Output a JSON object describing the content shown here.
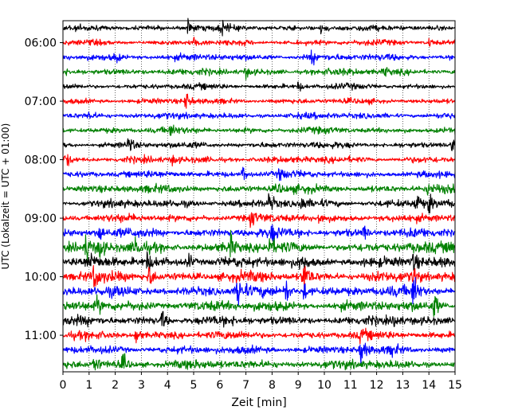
{
  "chart_data": {
    "type": "line",
    "xlabel": "Zeit  [min]",
    "ylabel": "UTC (Lokalzeit = UTC + 01:00)",
    "xlim": [
      0,
      15
    ],
    "x_ticks": [
      0,
      1,
      2,
      3,
      4,
      5,
      6,
      7,
      8,
      9,
      10,
      11,
      12,
      13,
      14,
      15
    ],
    "y_time_start": "05:45",
    "y_time_end": "11:45",
    "y_ticks": [
      "06:00",
      "07:00",
      "08:00",
      "09:00",
      "10:00",
      "11:00"
    ],
    "row_interval_min": 15,
    "grid": "vertical dotted at each minute",
    "color_cycle": [
      "#000000",
      "#ff0000",
      "#0000ff",
      "#008000"
    ],
    "rows": [
      {
        "start": "05:45",
        "color": "#000000",
        "amp": 0.25,
        "events": [
          {
            "t": 4.8,
            "a": 1.0
          },
          {
            "t": 6.1,
            "a": 0.8
          },
          {
            "t": 9.9,
            "a": 0.9
          }
        ]
      },
      {
        "start": "06:00",
        "color": "#ff0000",
        "amp": 0.25,
        "events": [
          {
            "t": 5.0,
            "a": 0.6
          },
          {
            "t": 14.0,
            "a": 0.5
          }
        ]
      },
      {
        "start": "06:15",
        "color": "#0000ff",
        "amp": 0.3,
        "events": [
          {
            "t": 9.5,
            "a": 0.7
          },
          {
            "t": 2.0,
            "a": 0.5
          }
        ]
      },
      {
        "start": "06:30",
        "color": "#008000",
        "amp": 0.3,
        "events": [
          {
            "t": 7.0,
            "a": 0.5
          },
          {
            "t": 12.3,
            "a": 0.5
          }
        ]
      },
      {
        "start": "06:45",
        "color": "#000000",
        "amp": 0.25,
        "events": [
          {
            "t": 9.0,
            "a": 0.5
          }
        ]
      },
      {
        "start": "07:00",
        "color": "#ff0000",
        "amp": 0.25,
        "events": [
          {
            "t": 4.7,
            "a": 1.1
          }
        ]
      },
      {
        "start": "07:15",
        "color": "#0000ff",
        "amp": 0.28,
        "events": [
          {
            "t": 1.0,
            "a": 0.4
          }
        ]
      },
      {
        "start": "07:30",
        "color": "#008000",
        "amp": 0.28,
        "events": [
          {
            "t": 4.1,
            "a": 0.6
          }
        ]
      },
      {
        "start": "07:45",
        "color": "#000000",
        "amp": 0.28,
        "events": [
          {
            "t": 2.5,
            "a": 1.0
          },
          {
            "t": 14.9,
            "a": 1.0
          }
        ]
      },
      {
        "start": "08:00",
        "color": "#ff0000",
        "amp": 0.3,
        "events": [
          {
            "t": 0.1,
            "a": 0.8
          },
          {
            "t": 4.2,
            "a": 0.5
          }
        ]
      },
      {
        "start": "08:15",
        "color": "#0000ff",
        "amp": 0.3,
        "events": [
          {
            "t": 6.9,
            "a": 1.1
          },
          {
            "t": 8.3,
            "a": 0.6
          }
        ]
      },
      {
        "start": "08:30",
        "color": "#008000",
        "amp": 0.35,
        "events": [
          {
            "t": 8.2,
            "a": 0.6
          },
          {
            "t": 14.0,
            "a": 0.7
          }
        ]
      },
      {
        "start": "08:45",
        "color": "#000000",
        "amp": 0.35,
        "events": [
          {
            "t": 7.9,
            "a": 1.2
          },
          {
            "t": 9.1,
            "a": 0.8
          },
          {
            "t": 13.5,
            "a": 1.5
          },
          {
            "t": 14.0,
            "a": 1.0
          }
        ]
      },
      {
        "start": "09:00",
        "color": "#ff0000",
        "amp": 0.35,
        "events": [
          {
            "t": 7.2,
            "a": 1.0
          },
          {
            "t": 9.8,
            "a": 0.6
          }
        ]
      },
      {
        "start": "09:15",
        "color": "#0000ff",
        "amp": 0.4,
        "events": [
          {
            "t": 8.0,
            "a": 0.8
          },
          {
            "t": 11.5,
            "a": 0.8
          },
          {
            "t": 1.4,
            "a": 1.1
          }
        ]
      },
      {
        "start": "09:30",
        "color": "#008000",
        "amp": 0.45,
        "events": [
          {
            "t": 0.9,
            "a": 1.5
          },
          {
            "t": 1.4,
            "a": 1.3
          },
          {
            "t": 2.8,
            "a": 1.1
          },
          {
            "t": 6.4,
            "a": 1.3
          },
          {
            "t": 7.9,
            "a": 1.0
          },
          {
            "t": 14.8,
            "a": 1.0
          }
        ]
      },
      {
        "start": "09:45",
        "color": "#000000",
        "amp": 0.45,
        "events": [
          {
            "t": 1.0,
            "a": 1.0
          },
          {
            "t": 3.2,
            "a": 1.1
          },
          {
            "t": 4.8,
            "a": 1.0
          },
          {
            "t": 9.1,
            "a": 1.1
          },
          {
            "t": 13.4,
            "a": 1.0
          }
        ]
      },
      {
        "start": "10:00",
        "color": "#ff0000",
        "amp": 0.45,
        "events": [
          {
            "t": 1.2,
            "a": 1.3
          },
          {
            "t": 3.3,
            "a": 1.3
          },
          {
            "t": 9.2,
            "a": 2.3
          },
          {
            "t": 13.4,
            "a": 1.1
          }
        ]
      },
      {
        "start": "10:15",
        "color": "#0000ff",
        "amp": 0.45,
        "events": [
          {
            "t": 6.7,
            "a": 2.2
          },
          {
            "t": 8.5,
            "a": 1.6
          },
          {
            "t": 9.2,
            "a": 1.2
          },
          {
            "t": 13.4,
            "a": 1.9
          }
        ]
      },
      {
        "start": "10:30",
        "color": "#008000",
        "amp": 0.45,
        "events": [
          {
            "t": 1.3,
            "a": 0.9
          },
          {
            "t": 14.2,
            "a": 1.3
          }
        ]
      },
      {
        "start": "10:45",
        "color": "#000000",
        "amp": 0.4,
        "events": [
          {
            "t": 3.8,
            "a": 1.0
          },
          {
            "t": 12.7,
            "a": 0.9
          }
        ]
      },
      {
        "start": "11:00",
        "color": "#ff0000",
        "amp": 0.35,
        "events": [
          {
            "t": 2.8,
            "a": 1.0
          },
          {
            "t": 11.4,
            "a": 0.7
          }
        ]
      },
      {
        "start": "11:15",
        "color": "#0000ff",
        "amp": 0.35,
        "events": [
          {
            "t": 11.4,
            "a": 1.6
          },
          {
            "t": 12.6,
            "a": 0.6
          }
        ]
      },
      {
        "start": "11:30",
        "color": "#008000",
        "amp": 0.4,
        "events": [
          {
            "t": 1.2,
            "a": 1.0
          },
          {
            "t": 2.3,
            "a": 0.9
          }
        ]
      }
    ]
  }
}
